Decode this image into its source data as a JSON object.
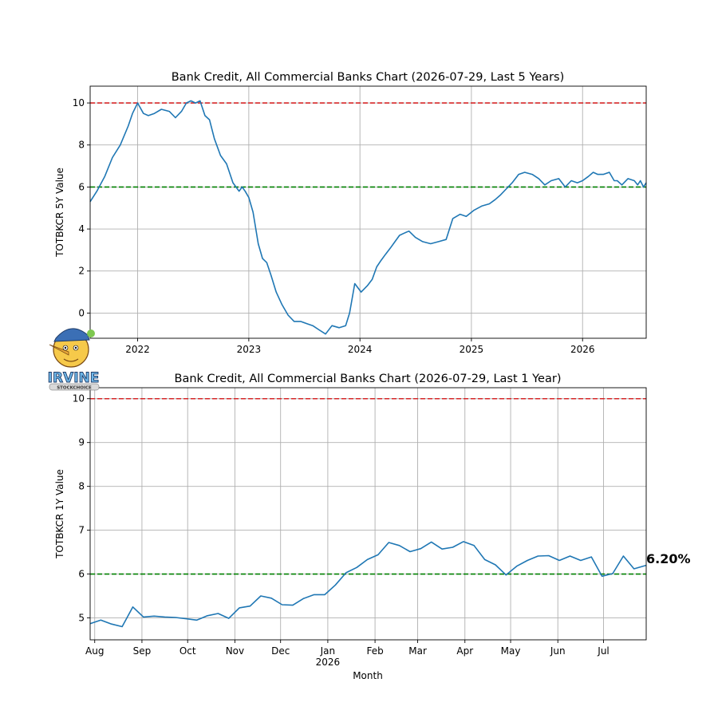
{
  "colors": {
    "series": "#1f77b4",
    "upper_ref": "#d62728",
    "lower_ref": "#008000"
  },
  "watermark": {
    "logo_text": "IRVINE",
    "logo_sub": "STOCKCHOICE"
  },
  "chart_data": [
    {
      "type": "line",
      "title": "Bank Credit, All Commercial Banks Chart (2026-07-29, Last 5 Years)",
      "xlabel": "",
      "ylabel": "TOTBKCR 5Y Value",
      "xlim": [
        "2021-07-29",
        "2026-07-29"
      ],
      "ylim": [
        -1.2,
        10.8
      ],
      "yticks": [
        0,
        2,
        4,
        6,
        8,
        10
      ],
      "xticks": [
        {
          "at": "2022-01-01",
          "label": "2022"
        },
        {
          "at": "2023-01-01",
          "label": "2023"
        },
        {
          "at": "2024-01-01",
          "label": "2024"
        },
        {
          "at": "2025-01-01",
          "label": "2025"
        },
        {
          "at": "2026-01-01",
          "label": "2026"
        }
      ],
      "grid": true,
      "reference_lines": [
        {
          "y": 10,
          "color": "red",
          "style": "dashed"
        },
        {
          "y": 6,
          "color": "green",
          "style": "dashed"
        }
      ],
      "series": [
        {
          "x": [
            "2021-07-29",
            "2021-08-20",
            "2021-09-15",
            "2021-10-10",
            "2021-11-05",
            "2021-12-01",
            "2021-12-15",
            "2022-01-01",
            "2022-01-20",
            "2022-02-05",
            "2022-02-25",
            "2022-03-20",
            "2022-04-15",
            "2022-05-05",
            "2022-05-25",
            "2022-06-10",
            "2022-06-25",
            "2022-07-10",
            "2022-07-25",
            "2022-08-10",
            "2022-08-25",
            "2022-09-10",
            "2022-09-30",
            "2022-10-20",
            "2022-11-10",
            "2022-11-30",
            "2022-12-10",
            "2022-12-20",
            "2023-01-01",
            "2023-01-15",
            "2023-02-01",
            "2023-02-15",
            "2023-03-01",
            "2023-03-15",
            "2023-04-01",
            "2023-04-20",
            "2023-05-10",
            "2023-05-30",
            "2023-06-20",
            "2023-07-10",
            "2023-07-30",
            "2023-08-20",
            "2023-09-10",
            "2023-10-01",
            "2023-10-25",
            "2023-11-15",
            "2023-11-28",
            "2023-12-15",
            "2024-01-05",
            "2024-01-25",
            "2024-02-10",
            "2024-02-25",
            "2024-03-10",
            "2024-03-25",
            "2024-04-10",
            "2024-04-25",
            "2024-05-10",
            "2024-05-25",
            "2024-06-10",
            "2024-07-01",
            "2024-07-25",
            "2024-08-20",
            "2024-09-15",
            "2024-10-10",
            "2024-11-01",
            "2024-11-25",
            "2024-12-15",
            "2025-01-10",
            "2025-02-05",
            "2025-03-01",
            "2025-03-20",
            "2025-04-05",
            "2025-04-25",
            "2025-05-15",
            "2025-06-05",
            "2025-06-25",
            "2025-07-20",
            "2025-08-10",
            "2025-08-30",
            "2025-09-20",
            "2025-10-15",
            "2025-11-05",
            "2025-11-25",
            "2025-12-15",
            "2026-01-01",
            "2026-01-20",
            "2026-02-05",
            "2026-02-20",
            "2026-03-10",
            "2026-03-30",
            "2026-04-15",
            "2026-04-25",
            "2026-05-10",
            "2026-05-30",
            "2026-06-20",
            "2026-07-01",
            "2026-07-10",
            "2026-07-20",
            "2026-07-29"
          ],
          "y": [
            5.3,
            5.8,
            6.5,
            7.4,
            8.0,
            8.9,
            9.5,
            10.0,
            9.5,
            9.4,
            9.5,
            9.7,
            9.6,
            9.3,
            9.6,
            10.0,
            10.1,
            10.0,
            10.1,
            9.4,
            9.2,
            8.3,
            7.5,
            7.1,
            6.2,
            5.8,
            6.0,
            5.8,
            5.5,
            4.8,
            3.3,
            2.6,
            2.4,
            1.8,
            1.0,
            0.4,
            -0.1,
            -0.4,
            -0.4,
            -0.5,
            -0.6,
            -0.8,
            -1.0,
            -0.6,
            -0.7,
            -0.6,
            0.0,
            1.4,
            1.0,
            1.3,
            1.6,
            2.2,
            2.5,
            2.8,
            3.1,
            3.4,
            3.7,
            3.8,
            3.9,
            3.6,
            3.4,
            3.3,
            3.4,
            3.5,
            4.5,
            4.7,
            4.6,
            4.9,
            5.1,
            5.2,
            5.4,
            5.6,
            5.9,
            6.2,
            6.6,
            6.7,
            6.6,
            6.4,
            6.1,
            6.3,
            6.4,
            6.0,
            6.3,
            6.2,
            6.3,
            6.5,
            6.7,
            6.6,
            6.6,
            6.7,
            6.3,
            6.3,
            6.1,
            6.4,
            6.3,
            6.1,
            6.3,
            6.0,
            6.2
          ]
        }
      ]
    },
    {
      "type": "line",
      "title": "Bank Credit, All Commercial Banks Chart (2026-07-29, Last 1 Year)",
      "xlabel": "Month",
      "ylabel": "TOTBKCR 1Y Value",
      "xlim": [
        "2025-07-29",
        "2026-07-29"
      ],
      "ylim": [
        4.5,
        10.25
      ],
      "yticks": [
        5,
        6,
        7,
        8,
        9,
        10
      ],
      "xticks": [
        {
          "at": "2025-08-01",
          "label": "Aug"
        },
        {
          "at": "2025-09-01",
          "label": "Sep"
        },
        {
          "at": "2025-10-01",
          "label": "Oct"
        },
        {
          "at": "2025-11-01",
          "label": "Nov"
        },
        {
          "at": "2025-12-01",
          "label": "Dec"
        },
        {
          "at": "2026-01-01",
          "label": "Jan",
          "sublabel": "2026"
        },
        {
          "at": "2026-02-01",
          "label": "Feb"
        },
        {
          "at": "2026-03-01",
          "label": "Mar"
        },
        {
          "at": "2026-04-01",
          "label": "Apr"
        },
        {
          "at": "2026-05-01",
          "label": "May"
        },
        {
          "at": "2026-06-01",
          "label": "Jun"
        },
        {
          "at": "2026-07-01",
          "label": "Jul"
        }
      ],
      "grid": true,
      "reference_lines": [
        {
          "y": 10,
          "color": "red",
          "style": "dashed"
        },
        {
          "y": 6,
          "color": "green",
          "style": "dashed"
        }
      ],
      "annotation": "6.20%",
      "series": [
        {
          "x": [
            "2025-07-29",
            "2025-08-05",
            "2025-08-12",
            "2025-08-19",
            "2025-08-26",
            "2025-09-02",
            "2025-09-09",
            "2025-09-16",
            "2025-09-23",
            "2025-09-30",
            "2025-10-07",
            "2025-10-14",
            "2025-10-21",
            "2025-10-28",
            "2025-11-04",
            "2025-11-11",
            "2025-11-18",
            "2025-11-25",
            "2025-12-02",
            "2025-12-09",
            "2025-12-16",
            "2025-12-23",
            "2025-12-30",
            "2026-01-06",
            "2026-01-13",
            "2026-01-20",
            "2026-01-27",
            "2026-02-03",
            "2026-02-10",
            "2026-02-17",
            "2026-02-24",
            "2026-03-03",
            "2026-03-10",
            "2026-03-17",
            "2026-03-24",
            "2026-03-31",
            "2026-04-07",
            "2026-04-14",
            "2026-04-21",
            "2026-04-28",
            "2026-05-05",
            "2026-05-12",
            "2026-05-19",
            "2026-05-26",
            "2026-06-02",
            "2026-06-09",
            "2026-06-16",
            "2026-06-23",
            "2026-06-30",
            "2026-07-07",
            "2026-07-14",
            "2026-07-21",
            "2026-07-29"
          ],
          "y": [
            4.87,
            4.95,
            4.86,
            4.8,
            5.25,
            5.02,
            5.04,
            5.02,
            5.01,
            4.98,
            4.95,
            5.05,
            5.1,
            4.99,
            5.23,
            5.27,
            5.5,
            5.45,
            5.3,
            5.29,
            5.44,
            5.53,
            5.53,
            5.75,
            6.03,
            6.15,
            6.33,
            6.44,
            6.72,
            6.65,
            6.51,
            6.58,
            6.73,
            6.57,
            6.61,
            6.74,
            6.65,
            6.33,
            6.21,
            5.98,
            6.18,
            6.31,
            6.41,
            6.42,
            6.31,
            6.41,
            6.31,
            6.39,
            5.95,
            6.01,
            6.41,
            6.12,
            6.2
          ]
        }
      ]
    }
  ]
}
